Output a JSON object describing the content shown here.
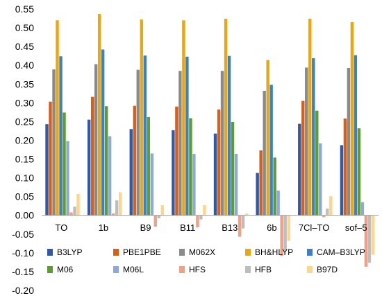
{
  "chart_data": {
    "type": "bar",
    "categories": [
      "TO",
      "1b",
      "B9",
      "B11",
      "B13",
      "6b",
      "7Cl–TO",
      "sof–5"
    ],
    "ylim": [
      -0.2,
      0.55
    ],
    "yticks": [
      "-0.20",
      "-0.15",
      "-0.10",
      "-0.05",
      "0.00",
      "0.05",
      "0.10",
      "0.15",
      "0.20",
      "0.25",
      "0.30",
      "0.35",
      "0.40",
      "0.45",
      "0.50",
      "0.55"
    ],
    "grid": false,
    "legend_position": "bottom",
    "series": [
      {
        "name": "B3LYP",
        "color": "#2e5aa8",
        "values": [
          0.243,
          0.255,
          0.23,
          0.227,
          0.218,
          0.113,
          0.244,
          0.187
        ]
      },
      {
        "name": "PBE1PBE",
        "color": "#d4601c",
        "values": [
          0.303,
          0.316,
          0.292,
          0.29,
          0.282,
          0.173,
          0.305,
          0.258
        ]
      },
      {
        "name": "M062X",
        "color": "#8a8a8a",
        "values": [
          0.389,
          0.403,
          0.388,
          0.385,
          0.385,
          0.332,
          0.394,
          0.393
        ]
      },
      {
        "name": "BH&HLYP",
        "color": "#e6a817",
        "values": [
          0.52,
          0.537,
          0.522,
          0.52,
          0.524,
          0.414,
          0.524,
          0.515
        ]
      },
      {
        "name": "CAM–B3LYP",
        "color": "#3b82c4",
        "values": [
          0.424,
          0.442,
          0.426,
          0.423,
          0.425,
          0.348,
          0.419,
          0.427
        ]
      },
      {
        "name": "M06",
        "color": "#5e9a35",
        "values": [
          0.274,
          0.291,
          0.262,
          0.259,
          0.249,
          0.154,
          0.279,
          0.232
        ]
      },
      {
        "name": "M06L",
        "color": "#8fa8d8",
        "values": [
          0.198,
          0.211,
          0.165,
          0.164,
          0.164,
          0.066,
          0.192,
          0.035
        ]
      },
      {
        "name": "HFS",
        "color": "#f0a086",
        "values": [
          0.008,
          0.005,
          -0.03,
          -0.032,
          -0.057,
          -0.108,
          -0.005,
          -0.137
        ]
      },
      {
        "name": "HFB",
        "color": "#bdbdbd",
        "values": [
          0.023,
          0.04,
          -0.008,
          -0.011,
          -0.035,
          -0.094,
          0.018,
          -0.126
        ]
      },
      {
        "name": "B97D",
        "color": "#fcd591",
        "values": [
          0.057,
          0.062,
          0.027,
          0.027,
          0.005,
          -0.068,
          0.051,
          -0.105
        ]
      }
    ]
  }
}
